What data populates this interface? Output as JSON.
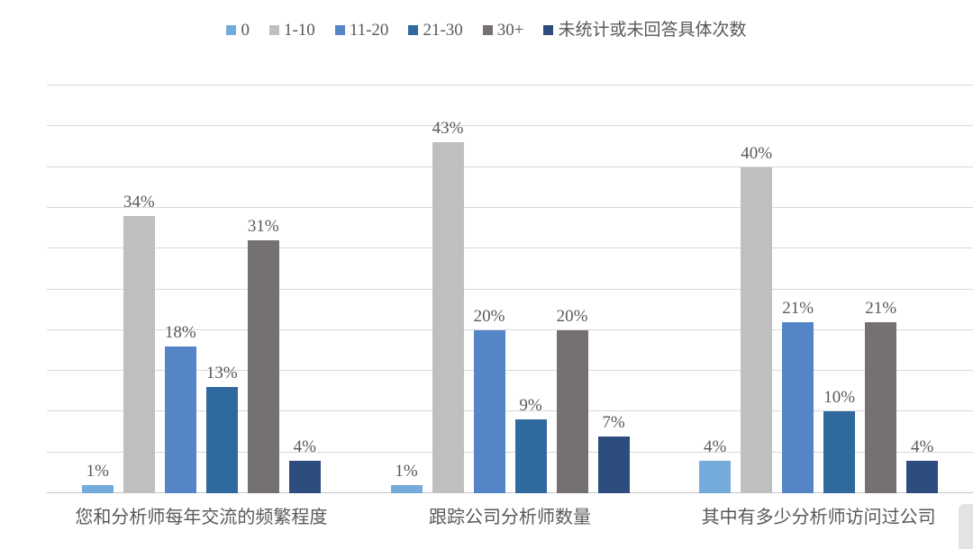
{
  "chart_data": {
    "type": "bar",
    "title": "",
    "categories": [
      "您和分析师每年交流的频繁程度",
      "跟踪公司分析师数量",
      "其中有多少分析师访问过公司"
    ],
    "series": [
      {
        "name": "0",
        "color": "#74ABDB",
        "values": [
          1,
          1,
          4
        ]
      },
      {
        "name": "1-10",
        "color": "#BFBFBF",
        "values": [
          34,
          43,
          40
        ]
      },
      {
        "name": "11-20",
        "color": "#5585C6",
        "values": [
          18,
          20,
          21
        ]
      },
      {
        "name": "21-30",
        "color": "#30699D",
        "values": [
          13,
          9,
          10
        ]
      },
      {
        "name": "30+",
        "color": "#767171",
        "values": [
          31,
          20,
          21
        ]
      },
      {
        "name": "未统计或未回答具体次数",
        "color": "#2C4D7E",
        "values": [
          4,
          7,
          4
        ]
      }
    ],
    "ylim": [
      0,
      50
    ],
    "gridline_step": 5,
    "grid": true,
    "legend_position": "top",
    "data_labels": true,
    "value_suffix": "%"
  },
  "styles": {
    "gridline_color": "#D9D9D9",
    "axis_color": "#C6C6C6",
    "text_color": "#595959",
    "background": "#FFFFFF"
  }
}
